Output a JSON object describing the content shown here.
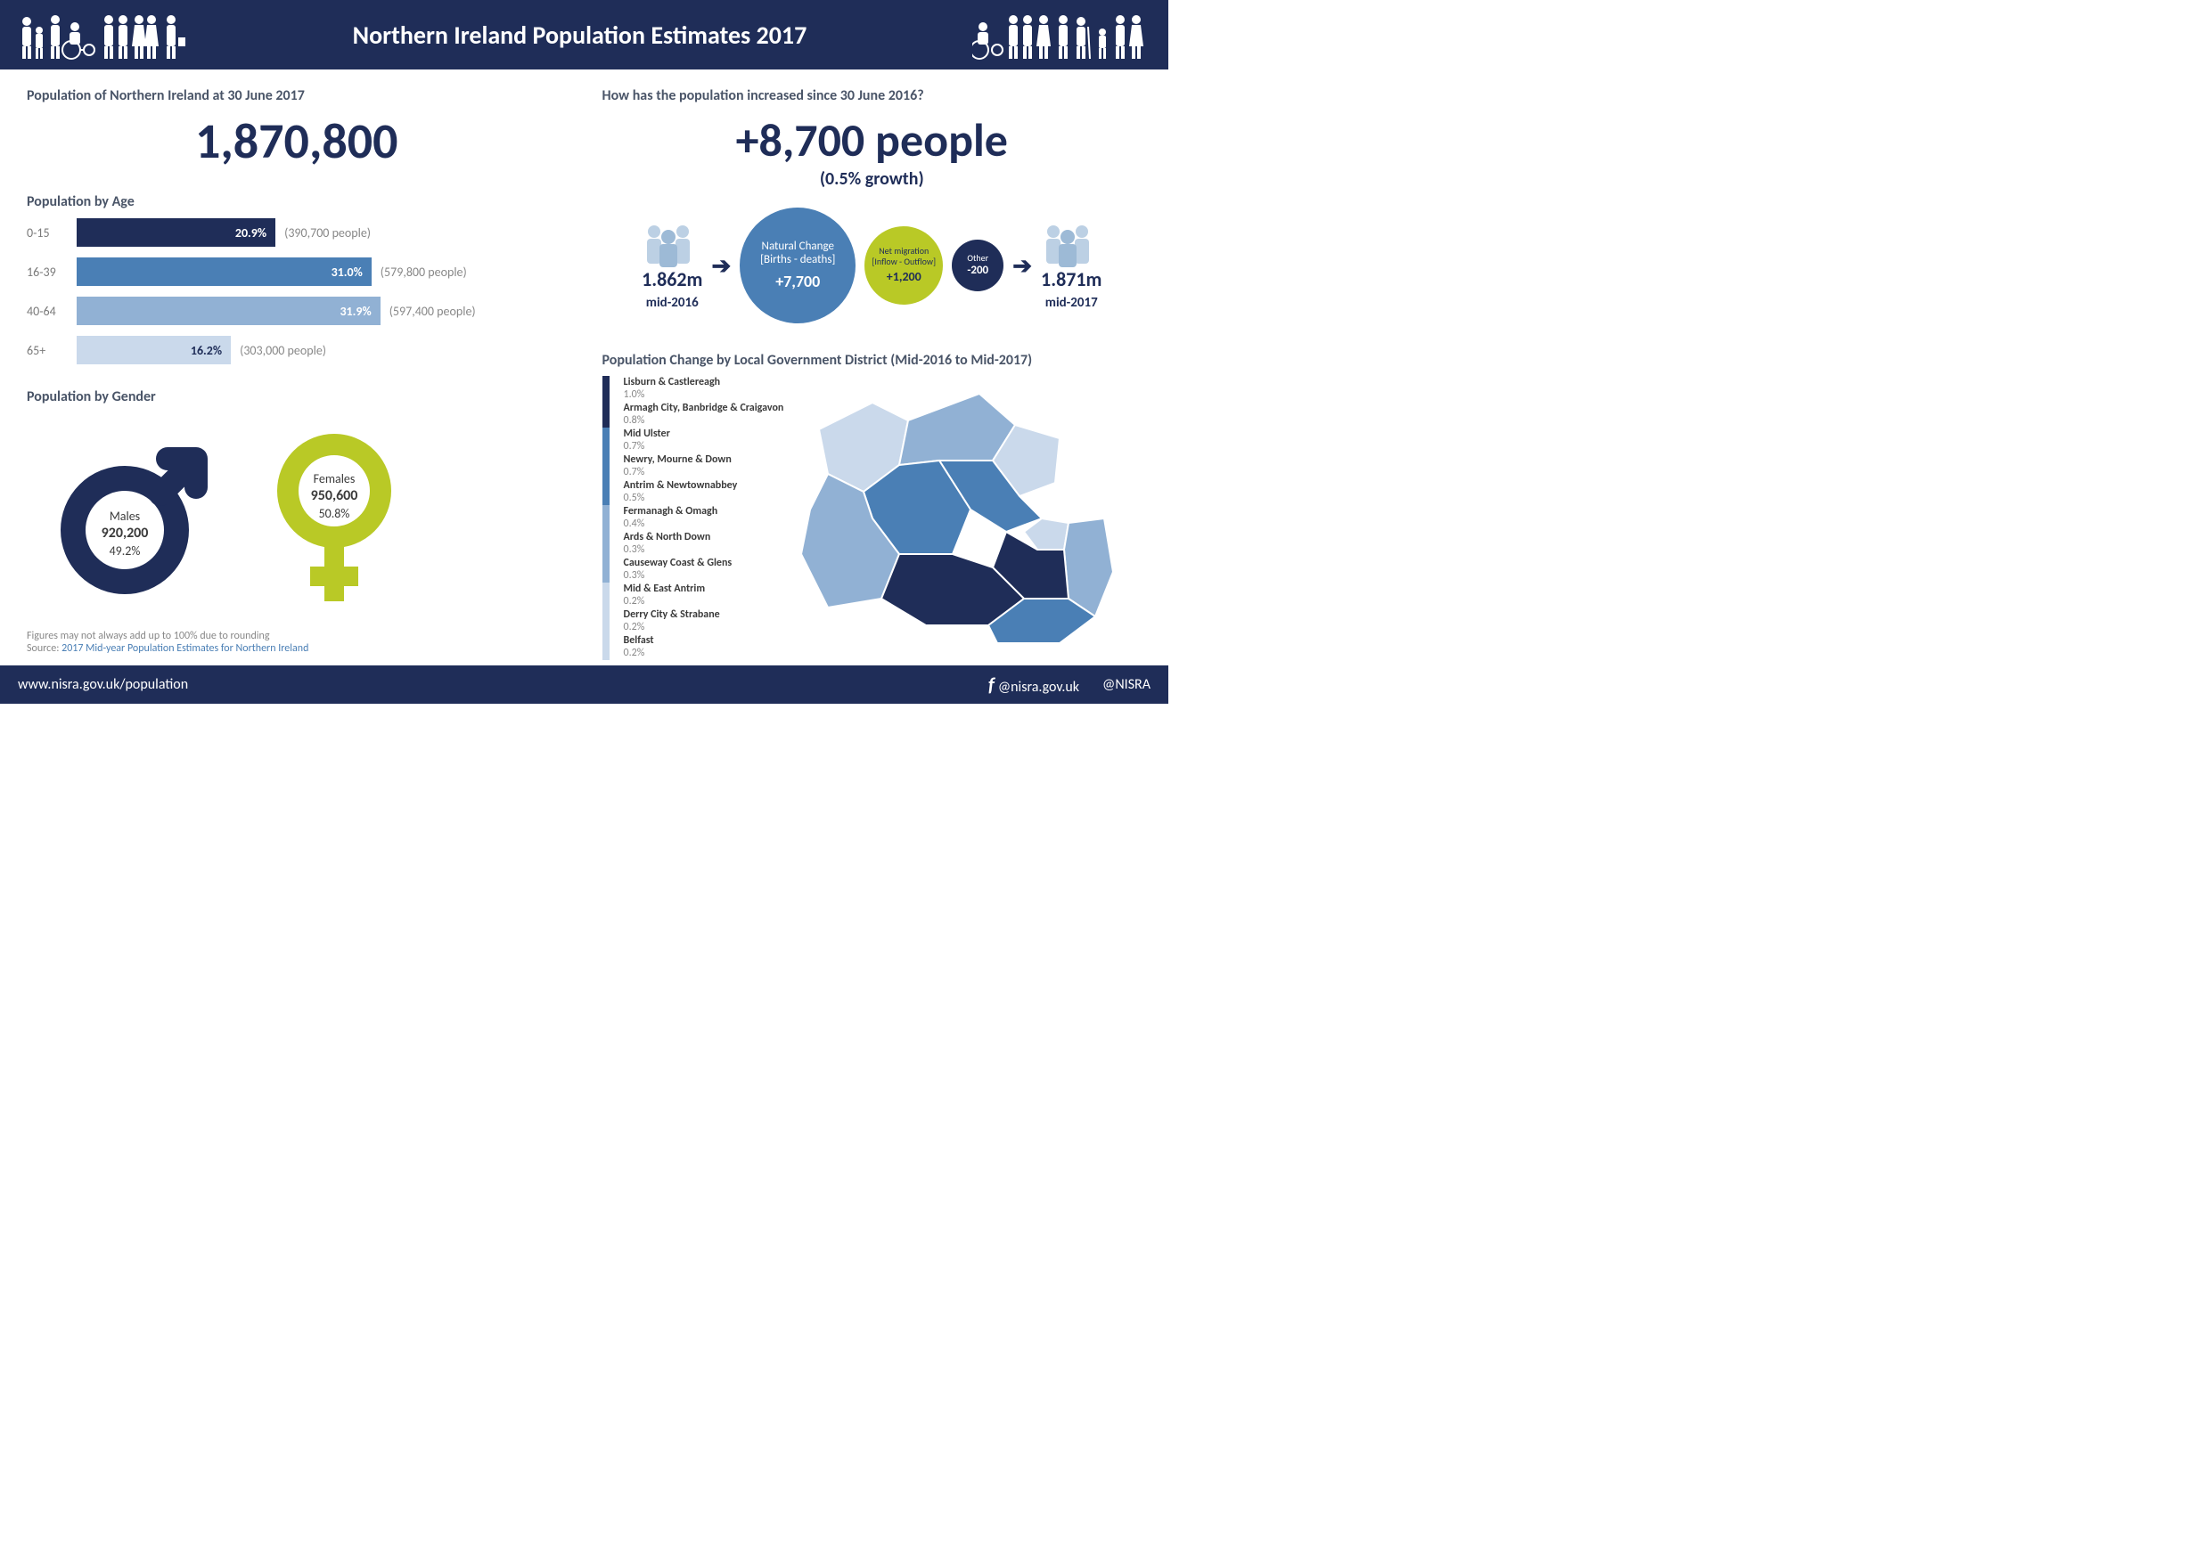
{
  "header": {
    "title": "Northern Ireland Population Estimates 2017",
    "bg_color": "#1f2d58",
    "text_color": "#ffffff"
  },
  "left": {
    "total_title": "Population of Northern Ireland at 30 June 2017",
    "total_value": "1,870,800",
    "age_title": "Population by Age",
    "age_chart": {
      "type": "bar",
      "max_pct": 35,
      "bars": [
        {
          "label": "0-15",
          "pct": 20.9,
          "pct_text": "20.9%",
          "count": "(390,700 people)",
          "color": "#1f2d58",
          "text_color": "#ffffff"
        },
        {
          "label": "16-39",
          "pct": 31.0,
          "pct_text": "31.0%",
          "count": "(579,800 people)",
          "color": "#4a7fb5",
          "text_color": "#ffffff"
        },
        {
          "label": "40-64",
          "pct": 31.9,
          "pct_text": "31.9%",
          "count": "(597,400 people)",
          "color": "#91b1d4",
          "text_color": "#ffffff"
        },
        {
          "label": "65+",
          "pct": 16.2,
          "pct_text": "16.2%",
          "count": "(303,000 people)",
          "color": "#cad9eb",
          "text_color": "#1f2d58"
        }
      ]
    },
    "gender_title": "Population by Gender",
    "gender": {
      "male": {
        "label": "Males",
        "value": "920,200",
        "pct": "49.2%",
        "color": "#1f2d58"
      },
      "female": {
        "label": "Females",
        "value": "950,600",
        "pct": "50.8%",
        "color": "#b9c926"
      }
    },
    "footnote_line1": "Figures may not always add up to 100% due to rounding",
    "footnote_source_prefix": "Source: ",
    "footnote_source_link": "2017 Mid-year Population Estimates for Northern Ireland"
  },
  "right": {
    "increase_title": "How has the population increased since 30 June 2016?",
    "increase_value": "+8,700 people",
    "increase_growth": "(0.5% growth)",
    "flow": {
      "start": {
        "value": "1.862m",
        "label": "mid-2016"
      },
      "natural": {
        "label1": "Natural Change",
        "label2": "[Births - deaths]",
        "value": "+7,700",
        "color": "#4a7fb5"
      },
      "migration": {
        "label1": "Net migration",
        "label2": "[Inflow - Outflow]",
        "value": "+1,200",
        "color": "#b9c926"
      },
      "other": {
        "label": "Other",
        "value": "-200",
        "color": "#1f2d58"
      },
      "end": {
        "value": "1.871m",
        "label": "mid-2017"
      }
    },
    "lgd_title": "Population Change by Local Government District (Mid-2016 to Mid-2017)",
    "lgd": {
      "colors": {
        "dark": "#1f2d58",
        "mid": "#4a7fb5",
        "light": "#91b1d4",
        "vlight": "#cad9eb"
      },
      "items": [
        {
          "name": "Lisburn & Castlereagh",
          "pct": "1.0%",
          "color": "#1f2d58"
        },
        {
          "name": "Armagh City, Banbridge & Craigavon",
          "pct": "0.8%",
          "color": "#1f2d58"
        },
        {
          "name": "Mid Ulster",
          "pct": "0.7%",
          "color": "#4a7fb5"
        },
        {
          "name": "Newry, Mourne & Down",
          "pct": "0.7%",
          "color": "#4a7fb5"
        },
        {
          "name": "Antrim & Newtownabbey",
          "pct": "0.5%",
          "color": "#4a7fb5"
        },
        {
          "name": "Fermanagh & Omagh",
          "pct": "0.4%",
          "color": "#91b1d4"
        },
        {
          "name": "Ards & North Down",
          "pct": "0.3%",
          "color": "#91b1d4"
        },
        {
          "name": "Causeway Coast & Glens",
          "pct": "0.3%",
          "color": "#91b1d4"
        },
        {
          "name": "Mid & East Antrim",
          "pct": "0.2%",
          "color": "#cad9eb"
        },
        {
          "name": "Derry City & Strabane",
          "pct": "0.2%",
          "color": "#cad9eb"
        },
        {
          "name": "Belfast",
          "pct": "0.2%",
          "color": "#cad9eb"
        }
      ]
    }
  },
  "footer": {
    "url": "www.nisra.gov.uk/population",
    "fb": "@nisra.gov.uk",
    "tw": "@NISRA"
  }
}
